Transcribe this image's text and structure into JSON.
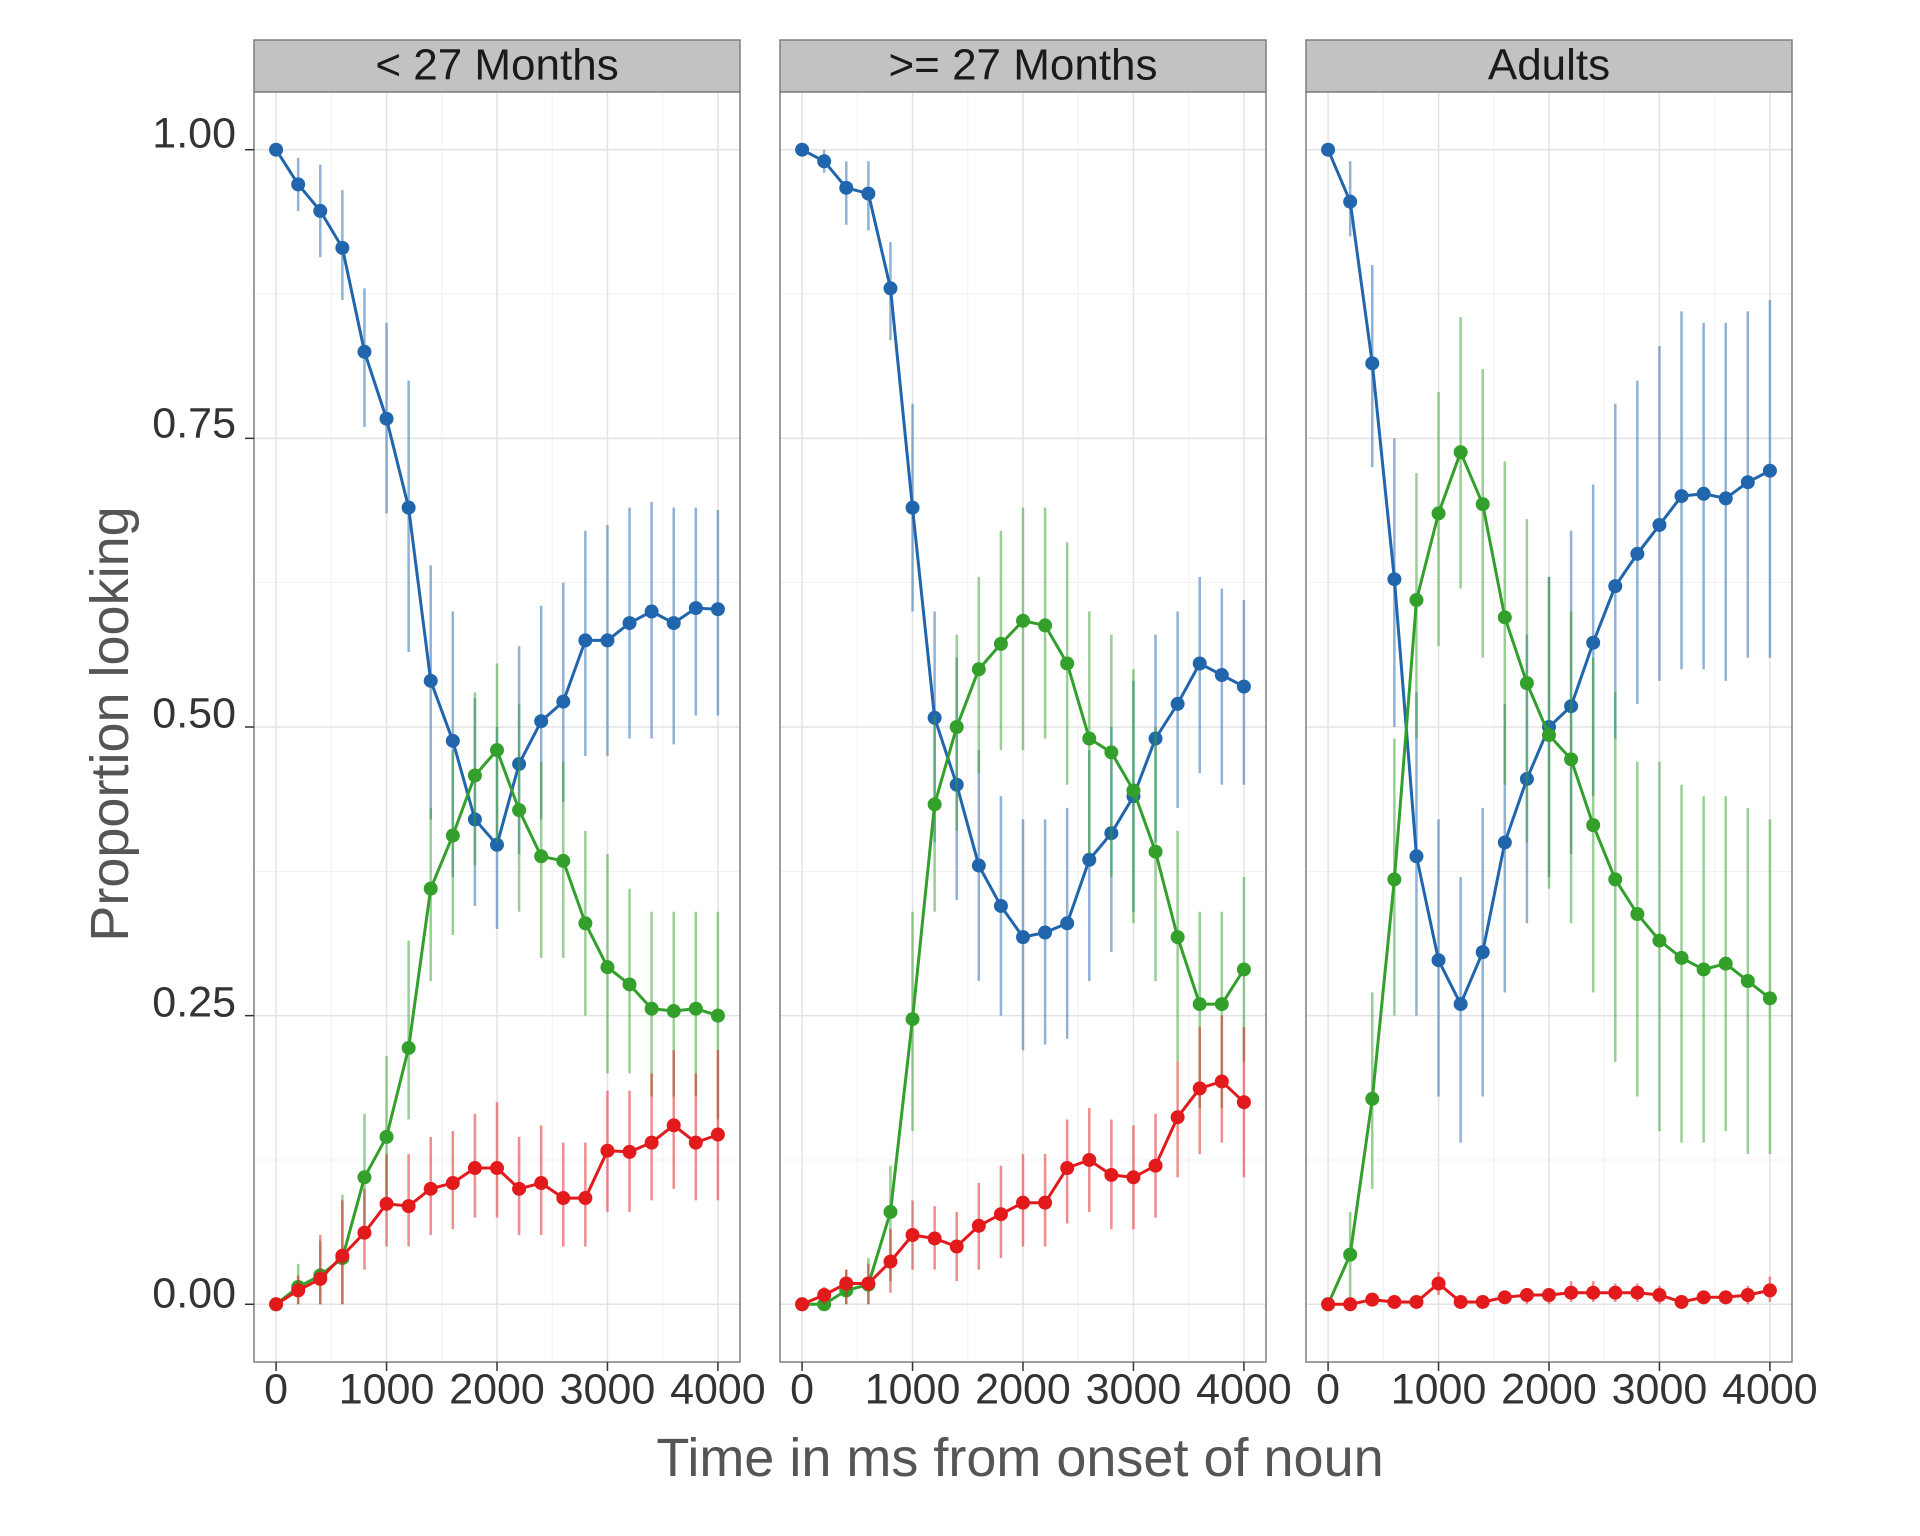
{
  "chart_data": {
    "type": "line",
    "xlabel": "Time in ms from onset of noun",
    "ylabel": "Proportion looking",
    "xlim": [
      -200,
      4200
    ],
    "ylim": [
      -0.05,
      1.05
    ],
    "x_ticks": [
      "0",
      "1000",
      "2000",
      "3000",
      "4000"
    ],
    "y_ticks": [
      "0.00",
      "0.25",
      "0.50",
      "0.75",
      "1.00"
    ],
    "grid": true,
    "x": [
      0,
      200,
      400,
      600,
      800,
      1000,
      1200,
      1400,
      1600,
      1800,
      2000,
      2200,
      2400,
      2600,
      2800,
      3000,
      3200,
      3400,
      3600,
      3800,
      4000
    ],
    "colors": {
      "blue": "#2166ac",
      "green": "#33a02c",
      "red": "#e31a1c"
    },
    "panels": [
      {
        "title": "< 27 Months",
        "series": [
          {
            "color": "blue",
            "values": [
              1.0,
              0.97,
              0.947,
              0.915,
              0.825,
              0.767,
              0.69,
              0.54,
              0.488,
              0.42,
              0.398,
              0.468,
              0.505,
              0.522,
              0.575,
              0.575,
              0.59,
              0.6,
              0.59,
              0.603,
              0.602
            ],
            "lower": [
              1.0,
              0.947,
              0.907,
              0.87,
              0.76,
              0.685,
              0.565,
              0.42,
              0.37,
              0.345,
              0.325,
              0.39,
              0.42,
              0.435,
              0.475,
              0.475,
              0.49,
              0.49,
              0.485,
              0.51,
              0.51
            ],
            "upper": [
              1.0,
              0.993,
              0.987,
              0.965,
              0.88,
              0.85,
              0.8,
              0.64,
              0.6,
              0.525,
              0.5,
              0.57,
              0.605,
              0.625,
              0.67,
              0.675,
              0.69,
              0.695,
              0.69,
              0.69,
              0.688
            ]
          },
          {
            "color": "green",
            "values": [
              0.0,
              0.015,
              0.025,
              0.04,
              0.11,
              0.145,
              0.222,
              0.36,
              0.406,
              0.458,
              0.48,
              0.428,
              0.388,
              0.384,
              0.33,
              0.292,
              0.277,
              0.256,
              0.254,
              0.256,
              0.25
            ],
            "lower": [
              0.0,
              0.0,
              0.0,
              0.0,
              0.06,
              0.09,
              0.16,
              0.28,
              0.32,
              0.38,
              0.4,
              0.34,
              0.3,
              0.3,
              0.25,
              0.2,
              0.2,
              0.18,
              0.18,
              0.18,
              0.16
            ],
            "upper": [
              0.0,
              0.035,
              0.055,
              0.095,
              0.165,
              0.215,
              0.315,
              0.43,
              0.48,
              0.53,
              0.555,
              0.52,
              0.47,
              0.47,
              0.41,
              0.39,
              0.36,
              0.34,
              0.34,
              0.34,
              0.34
            ]
          },
          {
            "color": "red",
            "values": [
              0.0,
              0.012,
              0.022,
              0.042,
              0.062,
              0.087,
              0.085,
              0.1,
              0.105,
              0.118,
              0.118,
              0.1,
              0.105,
              0.092,
              0.092,
              0.133,
              0.132,
              0.14,
              0.155,
              0.14,
              0.147
            ],
            "lower": [
              0.0,
              0.0,
              0.0,
              0.0,
              0.03,
              0.05,
              0.05,
              0.06,
              0.065,
              0.075,
              0.075,
              0.06,
              0.06,
              0.05,
              0.05,
              0.08,
              0.08,
              0.09,
              0.1,
              0.09,
              0.09
            ],
            "upper": [
              0.0,
              0.025,
              0.06,
              0.09,
              0.1,
              0.13,
              0.13,
              0.145,
              0.15,
              0.165,
              0.175,
              0.145,
              0.155,
              0.14,
              0.14,
              0.185,
              0.185,
              0.2,
              0.22,
              0.2,
              0.22
            ]
          }
        ]
      },
      {
        "title": ">= 27 Months",
        "series": [
          {
            "color": "blue",
            "values": [
              1.0,
              0.99,
              0.967,
              0.962,
              0.88,
              0.69,
              0.508,
              0.45,
              0.38,
              0.345,
              0.318,
              0.322,
              0.33,
              0.385,
              0.408,
              0.44,
              0.49,
              0.52,
              0.555,
              0.545,
              0.535
            ],
            "lower": [
              1.0,
              0.98,
              0.935,
              0.93,
              0.835,
              0.6,
              0.4,
              0.35,
              0.28,
              0.25,
              0.22,
              0.225,
              0.23,
              0.28,
              0.305,
              0.34,
              0.4,
              0.43,
              0.46,
              0.45,
              0.45
            ],
            "upper": [
              1.0,
              1.0,
              0.99,
              0.99,
              0.92,
              0.78,
              0.6,
              0.56,
              0.48,
              0.44,
              0.42,
              0.42,
              0.43,
              0.48,
              0.5,
              0.54,
              0.58,
              0.6,
              0.63,
              0.62,
              0.61
            ]
          },
          {
            "color": "green",
            "values": [
              0.0,
              0.0,
              0.012,
              0.017,
              0.08,
              0.247,
              0.433,
              0.5,
              0.55,
              0.572,
              0.592,
              0.588,
              0.555,
              0.49,
              0.478,
              0.445,
              0.392,
              0.318,
              0.26,
              0.26,
              0.29
            ],
            "lower": [
              0.0,
              0.0,
              0.0,
              0.0,
              0.02,
              0.15,
              0.34,
              0.41,
              0.46,
              0.48,
              0.48,
              0.49,
              0.45,
              0.39,
              0.37,
              0.33,
              0.28,
              0.21,
              0.17,
              0.17,
              0.21
            ],
            "upper": [
              0.0,
              0.0,
              0.03,
              0.04,
              0.12,
              0.34,
              0.51,
              0.58,
              0.63,
              0.67,
              0.69,
              0.69,
              0.66,
              0.6,
              0.58,
              0.55,
              0.5,
              0.41,
              0.34,
              0.34,
              0.37
            ]
          },
          {
            "color": "red",
            "values": [
              0.0,
              0.008,
              0.018,
              0.018,
              0.037,
              0.06,
              0.057,
              0.05,
              0.068,
              0.078,
              0.088,
              0.088,
              0.118,
              0.125,
              0.112,
              0.11,
              0.12,
              0.162,
              0.187,
              0.193,
              0.175
            ],
            "lower": [
              0.0,
              0.0,
              0.0,
              0.0,
              0.01,
              0.03,
              0.03,
              0.02,
              0.03,
              0.04,
              0.05,
              0.05,
              0.07,
              0.08,
              0.065,
              0.065,
              0.075,
              0.11,
              0.13,
              0.14,
              0.11
            ],
            "upper": [
              0.0,
              0.015,
              0.03,
              0.035,
              0.065,
              0.09,
              0.085,
              0.08,
              0.105,
              0.12,
              0.13,
              0.13,
              0.16,
              0.17,
              0.16,
              0.155,
              0.165,
              0.21,
              0.24,
              0.25,
              0.24
            ]
          }
        ]
      },
      {
        "title": "Adults",
        "series": [
          {
            "color": "blue",
            "values": [
              1.0,
              0.955,
              0.815,
              0.628,
              0.388,
              0.298,
              0.26,
              0.305,
              0.4,
              0.455,
              0.5,
              0.518,
              0.573,
              0.622,
              0.65,
              0.675,
              0.7,
              0.702,
              0.698,
              0.712,
              0.722
            ],
            "lower": [
              1.0,
              0.925,
              0.725,
              0.5,
              0.25,
              0.18,
              0.14,
              0.18,
              0.27,
              0.33,
              0.37,
              0.39,
              0.44,
              0.49,
              0.52,
              0.54,
              0.55,
              0.55,
              0.54,
              0.56,
              0.56
            ],
            "upper": [
              1.0,
              0.99,
              0.9,
              0.75,
              0.53,
              0.42,
              0.37,
              0.43,
              0.52,
              0.58,
              0.63,
              0.67,
              0.71,
              0.78,
              0.8,
              0.83,
              0.86,
              0.85,
              0.85,
              0.86,
              0.87
            ]
          },
          {
            "color": "green",
            "values": [
              0.0,
              0.043,
              0.178,
              0.368,
              0.61,
              0.685,
              0.738,
              0.693,
              0.595,
              0.538,
              0.493,
              0.472,
              0.415,
              0.368,
              0.338,
              0.315,
              0.3,
              0.29,
              0.295,
              0.28,
              0.265
            ],
            "lower": [
              0.0,
              0.0,
              0.1,
              0.25,
              0.49,
              0.57,
              0.62,
              0.56,
              0.45,
              0.4,
              0.36,
              0.33,
              0.27,
              0.21,
              0.18,
              0.15,
              0.14,
              0.14,
              0.15,
              0.13,
              0.13
            ],
            "upper": [
              0.0,
              0.08,
              0.27,
              0.49,
              0.72,
              0.79,
              0.855,
              0.81,
              0.73,
              0.68,
              0.63,
              0.6,
              0.56,
              0.53,
              0.47,
              0.47,
              0.45,
              0.44,
              0.44,
              0.43,
              0.42
            ]
          },
          {
            "color": "red",
            "values": [
              0.0,
              0.0,
              0.004,
              0.002,
              0.002,
              0.018,
              0.002,
              0.002,
              0.006,
              0.008,
              0.008,
              0.01,
              0.01,
              0.01,
              0.01,
              0.008,
              0.002,
              0.006,
              0.006,
              0.008,
              0.012
            ],
            "lower": [
              0.0,
              0.0,
              0.0,
              0.0,
              0.0,
              0.008,
              0.0,
              0.0,
              0.0,
              0.0,
              0.0,
              0.002,
              0.002,
              0.002,
              0.002,
              0.0,
              0.0,
              0.0,
              0.0,
              0.0,
              0.002
            ],
            "upper": [
              0.0,
              0.0,
              0.01,
              0.006,
              0.006,
              0.028,
              0.006,
              0.006,
              0.012,
              0.014,
              0.014,
              0.02,
              0.02,
              0.018,
              0.018,
              0.016,
              0.006,
              0.012,
              0.012,
              0.016,
              0.024
            ]
          }
        ]
      }
    ]
  }
}
